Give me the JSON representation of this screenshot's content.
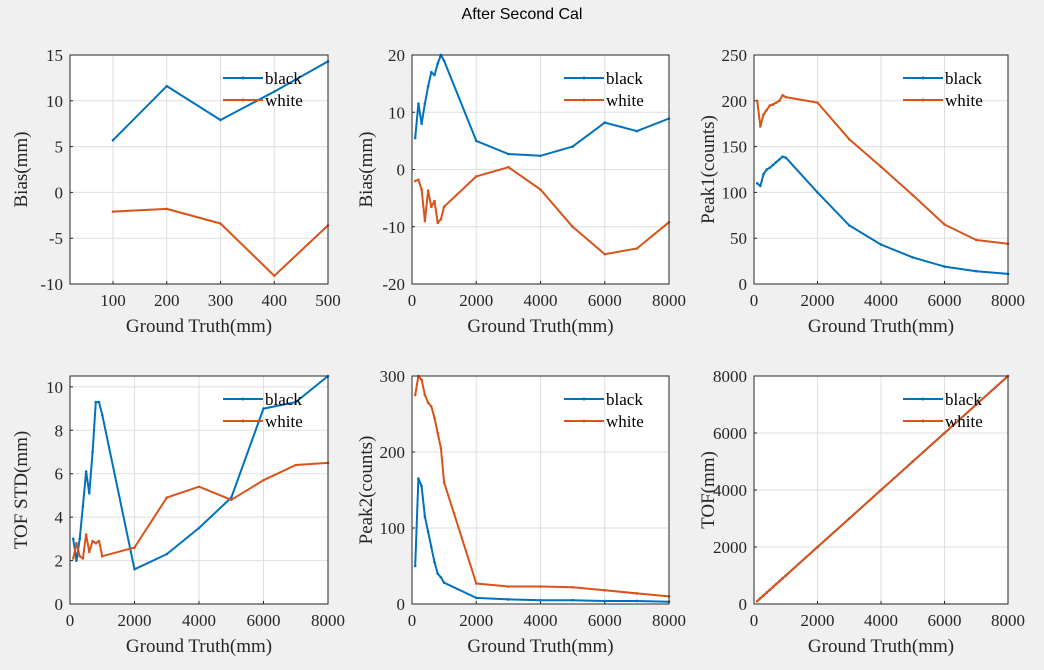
{
  "figure": {
    "title": "After Second Cal"
  },
  "chart_data": [
    {
      "type": "line",
      "xlabel": "Ground Truth(mm)",
      "ylabel": "Bias(mm)",
      "xlim": [
        20,
        500
      ],
      "ylim": [
        -10,
        15
      ],
      "xticks": [
        100,
        200,
        300,
        400,
        500
      ],
      "yticks": [
        -10,
        -5,
        0,
        5,
        10,
        15
      ],
      "grid": true,
      "legend_position": "top-right",
      "series": [
        {
          "name": "black",
          "color": "#0072bd",
          "x": [
            100,
            200,
            300,
            400,
            500
          ],
          "y": [
            5.7,
            11.6,
            7.9,
            11.0,
            14.3
          ]
        },
        {
          "name": "white",
          "color": "#d95319",
          "x": [
            100,
            200,
            300,
            400,
            500
          ],
          "y": [
            -2.1,
            -1.8,
            -3.4,
            -9.1,
            -3.6
          ]
        }
      ]
    },
    {
      "type": "line",
      "xlabel": "Ground Truth(mm)",
      "ylabel": "Bias(mm)",
      "xlim": [
        0,
        8000
      ],
      "ylim": [
        -20,
        20
      ],
      "xticks": [
        0,
        2000,
        4000,
        6000,
        8000
      ],
      "yticks": [
        -20,
        -10,
        0,
        10,
        20
      ],
      "grid": true,
      "legend_position": "top-right",
      "series": [
        {
          "name": "black",
          "color": "#0072bd",
          "x": [
            100,
            200,
            300,
            400,
            500,
            600,
            700,
            800,
            900,
            1000,
            2000,
            3000,
            4000,
            5000,
            6000,
            7000,
            8000
          ],
          "y": [
            5.5,
            11.5,
            8.0,
            11.5,
            14.5,
            17.0,
            16.5,
            18.5,
            20.0,
            19.0,
            5.0,
            2.7,
            2.4,
            4.0,
            8.2,
            6.7,
            8.9
          ]
        },
        {
          "name": "white",
          "color": "#d95319",
          "x": [
            100,
            200,
            300,
            400,
            500,
            600,
            700,
            800,
            900,
            1000,
            2000,
            3000,
            4000,
            5000,
            6000,
            7000,
            8000
          ],
          "y": [
            -2.0,
            -1.8,
            -3.5,
            -9.0,
            -3.7,
            -6.5,
            -5.5,
            -9.3,
            -8.7,
            -6.5,
            -1.2,
            0.4,
            -3.5,
            -10.0,
            -14.8,
            -13.8,
            -9.2
          ]
        }
      ]
    },
    {
      "type": "line",
      "xlabel": "Ground Truth(mm)",
      "ylabel": "Peak1(counts)",
      "xlim": [
        0,
        8000
      ],
      "ylim": [
        0,
        250
      ],
      "xticks": [
        0,
        2000,
        4000,
        6000,
        8000
      ],
      "yticks": [
        0,
        50,
        100,
        150,
        200,
        250
      ],
      "grid": true,
      "legend_position": "top-right",
      "series": [
        {
          "name": "black",
          "color": "#0072bd",
          "x": [
            100,
            200,
            300,
            400,
            500,
            600,
            700,
            800,
            900,
            1000,
            2000,
            3000,
            4000,
            5000,
            6000,
            7000,
            8000
          ],
          "y": [
            110,
            107,
            120,
            125,
            127,
            130,
            133,
            136,
            139,
            138,
            100,
            64,
            43,
            29,
            19,
            14,
            11
          ]
        },
        {
          "name": "white",
          "color": "#d95319",
          "x": [
            100,
            200,
            300,
            400,
            500,
            600,
            700,
            800,
            900,
            1000,
            2000,
            3000,
            4000,
            5000,
            6000,
            7000,
            8000
          ],
          "y": [
            200,
            172,
            185,
            190,
            195,
            196,
            198,
            200,
            206,
            204,
            198,
            158,
            128,
            97,
            65,
            48,
            44
          ]
        }
      ]
    },
    {
      "type": "line",
      "xlabel": "Ground Truth(mm)",
      "ylabel": "TOF STD(mm)",
      "xlim": [
        0,
        8000
      ],
      "ylim": [
        0,
        10.5
      ],
      "xticks": [
        0,
        2000,
        4000,
        6000,
        8000
      ],
      "yticks": [
        0,
        2,
        4,
        6,
        8,
        10
      ],
      "grid": true,
      "legend_position": "top-right",
      "series": [
        {
          "name": "black",
          "color": "#0072bd",
          "x": [
            100,
            200,
            300,
            400,
            500,
            600,
            700,
            800,
            900,
            1000,
            2000,
            3000,
            4000,
            5000,
            6000,
            7000,
            8000
          ],
          "y": [
            3.0,
            2.0,
            3.0,
            4.5,
            6.1,
            5.1,
            7.0,
            9.3,
            9.3,
            8.7,
            1.6,
            2.3,
            3.5,
            4.9,
            9.0,
            9.3,
            10.5
          ]
        },
        {
          "name": "white",
          "color": "#d95319",
          "x": [
            100,
            200,
            300,
            400,
            500,
            600,
            700,
            800,
            900,
            1000,
            2000,
            3000,
            4000,
            5000,
            6000,
            7000,
            8000
          ],
          "y": [
            2.1,
            2.8,
            2.2,
            2.1,
            3.2,
            2.4,
            2.9,
            2.8,
            2.9,
            2.2,
            2.6,
            4.9,
            5.4,
            4.8,
            5.7,
            6.4,
            6.5
          ]
        }
      ]
    },
    {
      "type": "line",
      "xlabel": "Ground Truth(mm)",
      "ylabel": "Peak2(counts)",
      "xlim": [
        0,
        8000
      ],
      "ylim": [
        0,
        300
      ],
      "xticks": [
        0,
        2000,
        4000,
        6000,
        8000
      ],
      "yticks": [
        0,
        100,
        200,
        300
      ],
      "grid": true,
      "legend_position": "top-right",
      "series": [
        {
          "name": "black",
          "color": "#0072bd",
          "x": [
            100,
            200,
            300,
            400,
            500,
            600,
            700,
            800,
            900,
            1000,
            2000,
            3000,
            4000,
            5000,
            6000,
            7000,
            8000
          ],
          "y": [
            50,
            165,
            155,
            115,
            95,
            75,
            55,
            40,
            35,
            28,
            8,
            6,
            5,
            5,
            4,
            4,
            3
          ]
        },
        {
          "name": "white",
          "color": "#d95319",
          "x": [
            100,
            200,
            300,
            400,
            500,
            600,
            700,
            800,
            900,
            1000,
            2000,
            3000,
            4000,
            5000,
            6000,
            7000,
            8000
          ],
          "y": [
            275,
            300,
            295,
            275,
            265,
            260,
            245,
            225,
            205,
            160,
            27,
            23,
            23,
            22,
            18,
            14,
            10
          ]
        }
      ]
    },
    {
      "type": "line",
      "xlabel": "Ground Truth(mm)",
      "ylabel": "TOF(mm)",
      "xlim": [
        0,
        8000
      ],
      "ylim": [
        0,
        8000
      ],
      "xticks": [
        0,
        2000,
        4000,
        6000,
        8000
      ],
      "yticks": [
        0,
        2000,
        4000,
        6000,
        8000
      ],
      "grid": true,
      "legend_position": "top-right",
      "series": [
        {
          "name": "black",
          "color": "#0072bd",
          "x": [
            100,
            200,
            300,
            400,
            500,
            600,
            700,
            800,
            900,
            1000,
            2000,
            3000,
            4000,
            5000,
            6000,
            7000,
            8000
          ],
          "y": [
            100,
            200,
            300,
            400,
            500,
            600,
            700,
            800,
            900,
            1000,
            2000,
            3000,
            4000,
            5000,
            6000,
            7000,
            8000
          ]
        },
        {
          "name": "white",
          "color": "#d95319",
          "x": [
            100,
            200,
            300,
            400,
            500,
            600,
            700,
            800,
            900,
            1000,
            2000,
            3000,
            4000,
            5000,
            6000,
            7000,
            8000
          ],
          "y": [
            100,
            200,
            300,
            400,
            500,
            600,
            700,
            800,
            900,
            1000,
            2000,
            3000,
            4000,
            5000,
            6000,
            7000,
            8000
          ]
        }
      ]
    }
  ]
}
